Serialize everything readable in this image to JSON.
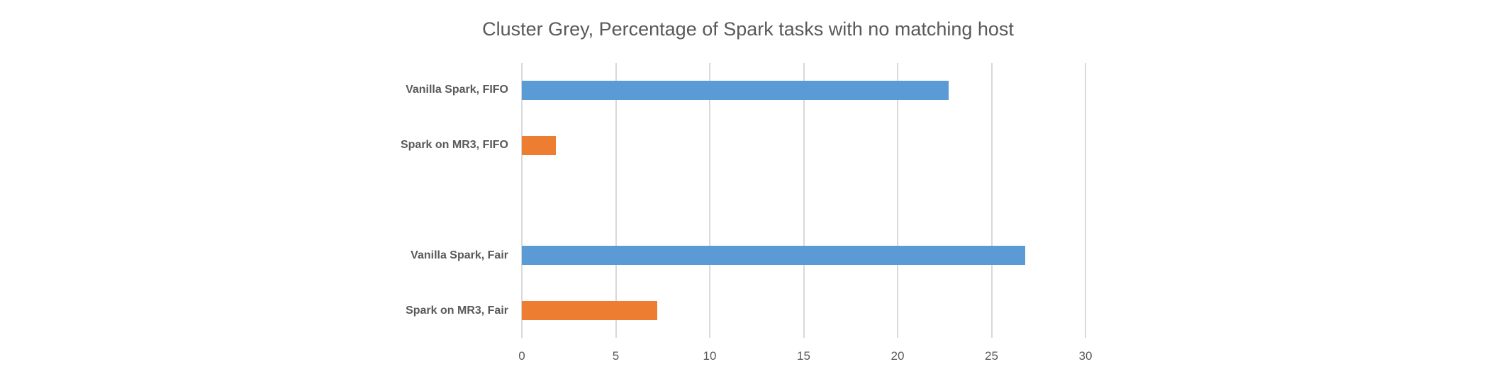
{
  "chart_data": {
    "type": "bar",
    "orientation": "horizontal",
    "title": "Cluster Grey, Percentage of Spark tasks with no matching host",
    "xlabel": "",
    "ylabel": "",
    "xlim": [
      0,
      30
    ],
    "xticks": [
      0,
      5,
      10,
      15,
      20,
      25,
      30
    ],
    "grid": true,
    "legend": null,
    "categories": [
      "Vanilla Spark, FIFO",
      "Spark on MR3, FIFO",
      "",
      "Vanilla Spark, Fair",
      "Spark on MR3, Fair"
    ],
    "values": [
      22.7,
      1.8,
      null,
      26.8,
      7.2
    ],
    "colors": [
      "#5B9BD5",
      "#ED7D31",
      null,
      "#5B9BD5",
      "#ED7D31"
    ]
  },
  "title": "Cluster Grey, Percentage of Spark tasks with no matching host",
  "ticks": [
    "0",
    "5",
    "10",
    "15",
    "20",
    "25",
    "30"
  ],
  "labels": [
    "Vanilla Spark, FIFO",
    "Spark on MR3, FIFO",
    "Vanilla Spark, Fair",
    "Spark on MR3, Fair"
  ]
}
